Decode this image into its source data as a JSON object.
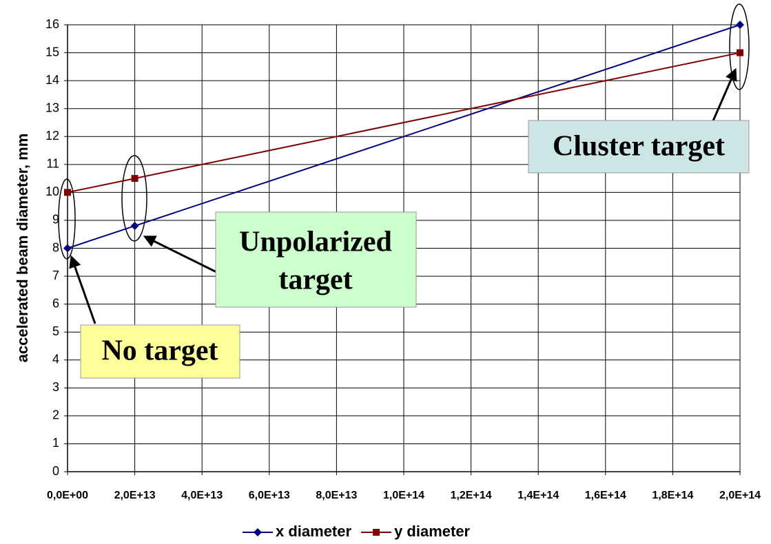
{
  "chart_data": {
    "type": "line",
    "x": [
      0,
      20000000000000,
      200000000000000
    ],
    "series": [
      {
        "name": "x diameter",
        "color": "#000080",
        "marker": "diamond",
        "values": [
          8,
          8.8,
          16
        ]
      },
      {
        "name": "y diameter",
        "color": "#800000",
        "marker": "square",
        "values": [
          10,
          10.5,
          15
        ]
      }
    ],
    "ylabel": "accelerated beam diameter, mm",
    "xlim": [
      0,
      200000000000000
    ],
    "xticks": [
      {
        "value": 0,
        "label": "0,0E+00"
      },
      {
        "value": 20000000000000,
        "label": "2,0E+13"
      },
      {
        "value": 40000000000000,
        "label": "4,0E+13"
      },
      {
        "value": 60000000000000,
        "label": "6,0E+13"
      },
      {
        "value": 80000000000000,
        "label": "8,0E+13"
      },
      {
        "value": 100000000000000,
        "label": "1,0E+14"
      },
      {
        "value": 120000000000000,
        "label": "1,2E+14"
      },
      {
        "value": 140000000000000,
        "label": "1,4E+14"
      },
      {
        "value": 160000000000000,
        "label": "1,6E+14"
      },
      {
        "value": 180000000000000,
        "label": "1,8E+14"
      },
      {
        "value": 200000000000000,
        "label": "2,0E+14"
      }
    ],
    "ylim": [
      0,
      16
    ],
    "yticks": [
      0,
      1,
      2,
      3,
      4,
      5,
      6,
      7,
      8,
      9,
      10,
      11,
      12,
      13,
      14,
      15,
      16
    ],
    "grid": true,
    "legend": "bottom",
    "annotations": [
      [
        "No target"
      ],
      [
        "Unpolarized",
        "target"
      ],
      [
        "Cluster target"
      ]
    ]
  }
}
